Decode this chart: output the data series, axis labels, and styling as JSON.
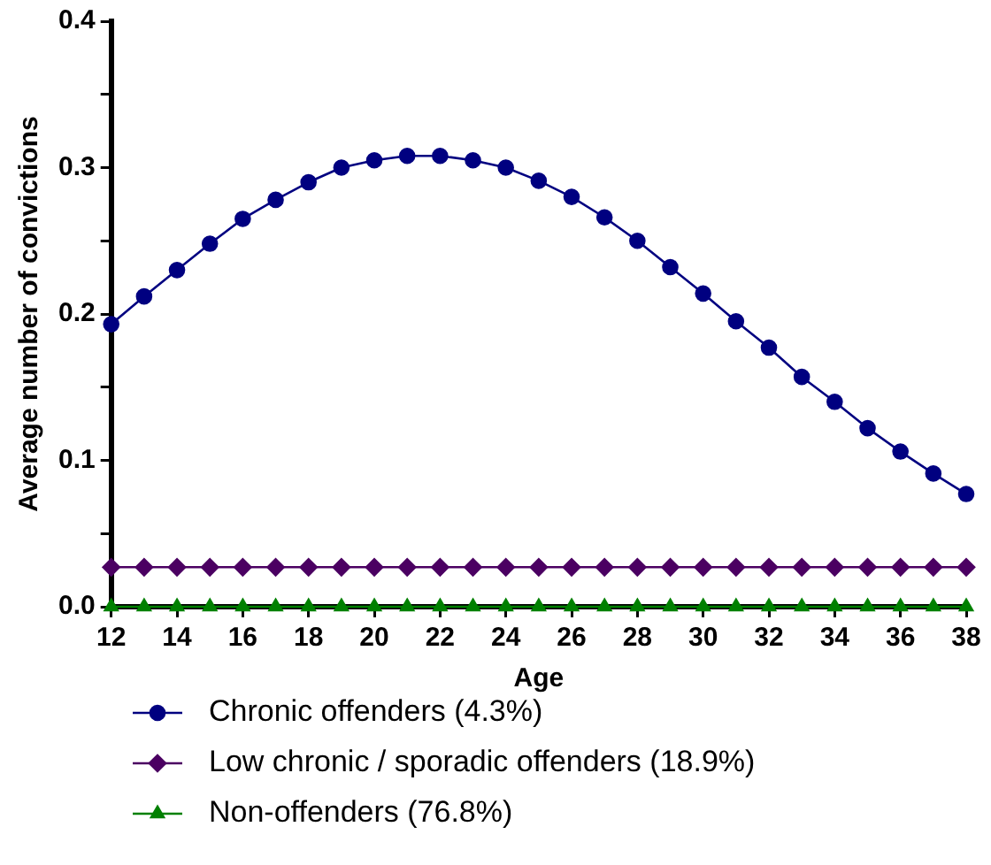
{
  "chart_data": {
    "type": "line",
    "xlabel": "Age",
    "ylabel": "Average number of convictions",
    "x": [
      12,
      13,
      14,
      15,
      16,
      17,
      18,
      19,
      20,
      21,
      22,
      23,
      24,
      25,
      26,
      27,
      28,
      29,
      30,
      31,
      32,
      33,
      34,
      35,
      36,
      37,
      38
    ],
    "xlim": [
      12,
      38
    ],
    "xticks": [
      12,
      14,
      16,
      18,
      20,
      22,
      24,
      26,
      28,
      30,
      32,
      34,
      36,
      38
    ],
    "ylim": [
      0,
      0.4
    ],
    "yticks": [
      {
        "value": 0,
        "label": "0.0"
      },
      {
        "value": 0.05,
        "label": null
      },
      0.1,
      {
        "value": 0.15,
        "label": null
      },
      0.2,
      {
        "value": 0.25,
        "label": null
      },
      0.3,
      {
        "value": 0.35,
        "label": null
      },
      0.4
    ],
    "grid": false,
    "legend": "bottom",
    "series": [
      {
        "name": "Chronic offenders (4.3%)",
        "color": "#000080",
        "marker": "circle",
        "values": [
          0.193,
          0.212,
          0.23,
          0.248,
          0.265,
          0.278,
          0.29,
          0.3,
          0.305,
          0.308,
          0.308,
          0.305,
          0.3,
          0.291,
          0.28,
          0.266,
          0.25,
          0.232,
          0.214,
          0.195,
          0.177,
          0.157,
          0.14,
          0.122,
          0.106,
          0.091,
          0.077
        ]
      },
      {
        "name": "Low chronic / sporadic offenders (18.9%)",
        "color": "#4b0062",
        "marker": "diamond",
        "values": [
          0.027,
          0.027,
          0.027,
          0.027,
          0.027,
          0.027,
          0.027,
          0.027,
          0.027,
          0.027,
          0.027,
          0.027,
          0.027,
          0.027,
          0.027,
          0.027,
          0.027,
          0.027,
          0.027,
          0.027,
          0.027,
          0.027,
          0.027,
          0.027,
          0.027,
          0.027,
          0.027
        ]
      },
      {
        "name": "Non-offenders (76.8%)",
        "color": "#008000",
        "marker": "triangle",
        "values": [
          0,
          0,
          0,
          0,
          0,
          0,
          0,
          0,
          0,
          0,
          0,
          0,
          0,
          0,
          0,
          0,
          0,
          0,
          0,
          0,
          0,
          0,
          0,
          0,
          0,
          0,
          0
        ]
      }
    ]
  }
}
